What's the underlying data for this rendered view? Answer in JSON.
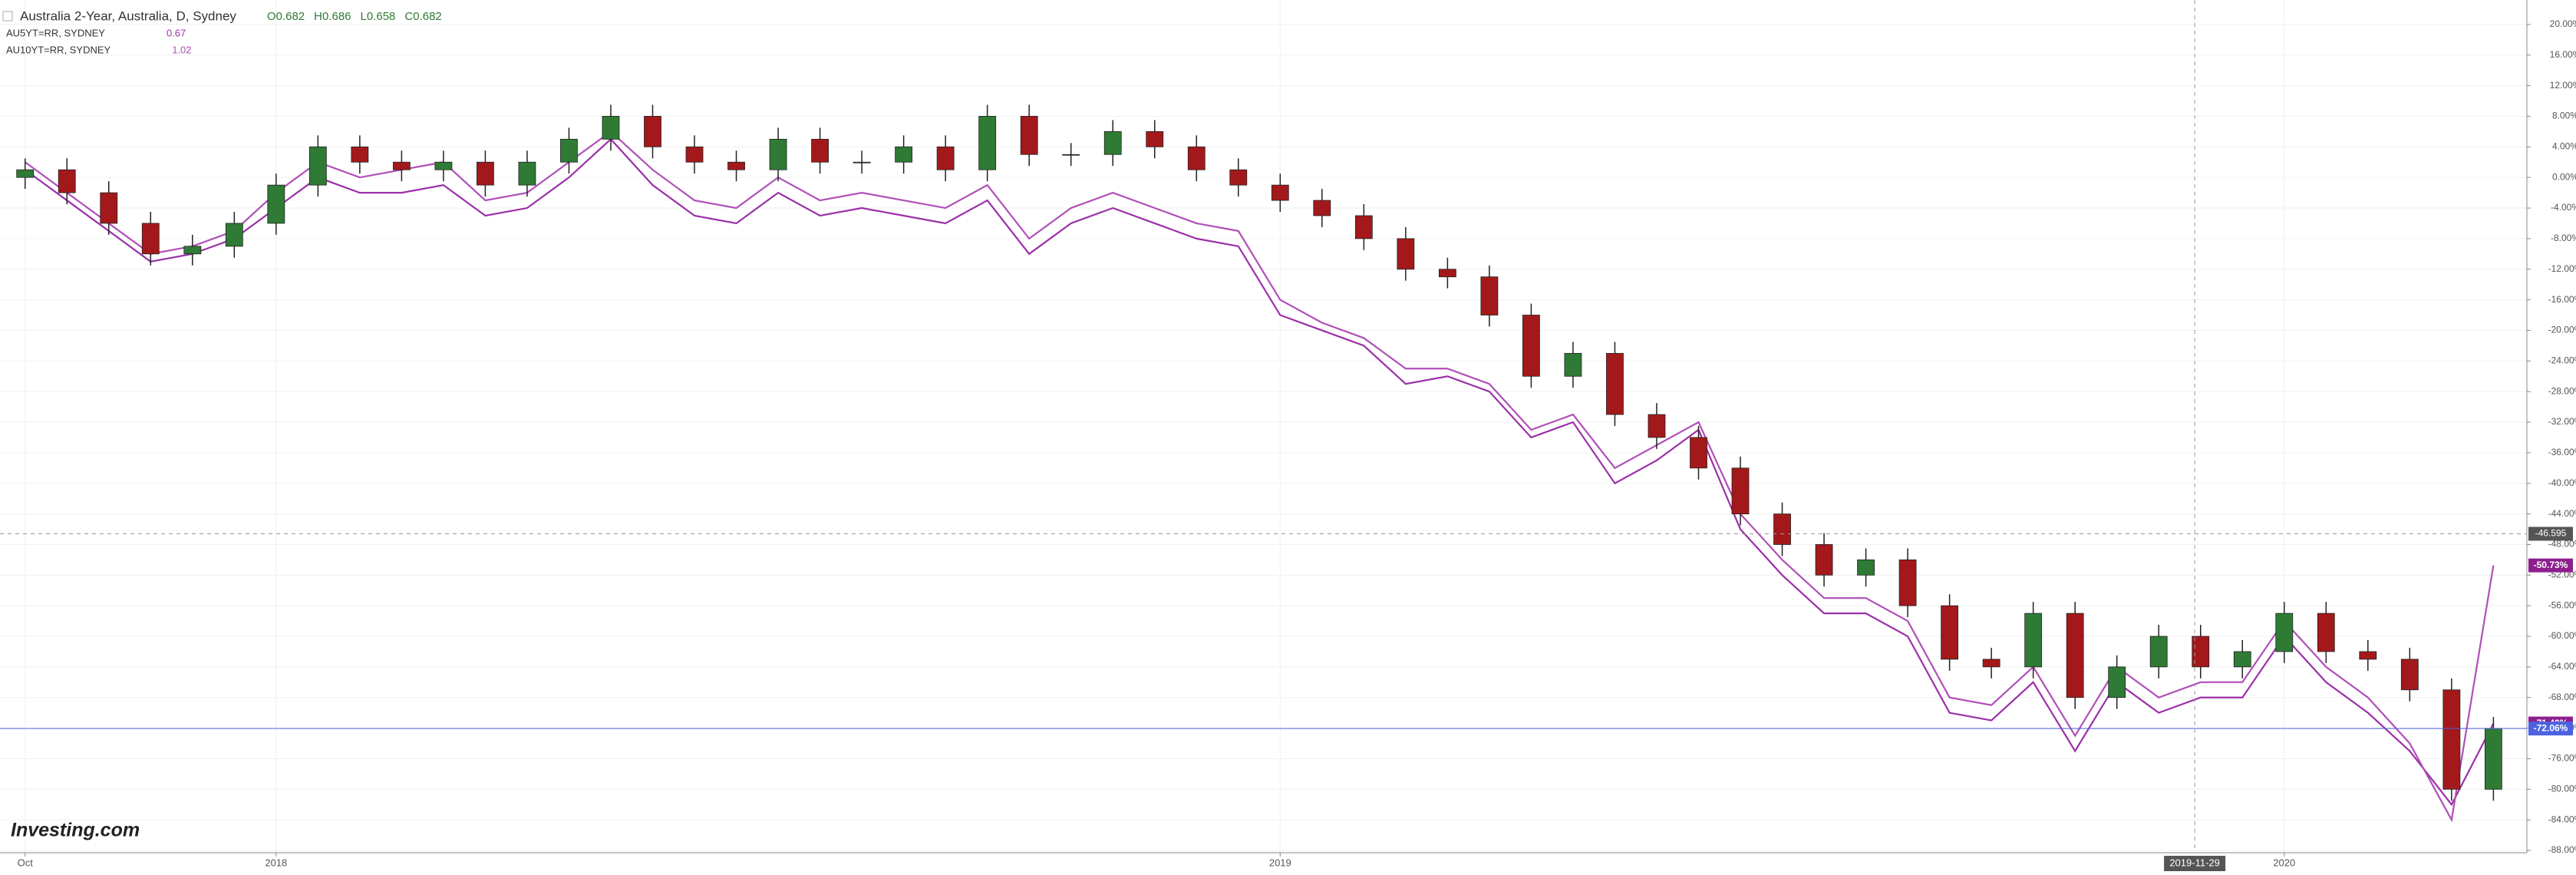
{
  "chart_data": {
    "type": "candlestick",
    "title": "Australia 2-Year, Australia, D, Sydney",
    "ohlc_labels": [
      "O0.682",
      "H0.686",
      "L0.658",
      "C0.682"
    ],
    "legend": [
      {
        "name": "AU5YT=RR, SYDNEY",
        "value_label": "0.67"
      },
      {
        "name": "AU10YT=RR, SYDNEY",
        "value_label": "1.02"
      }
    ],
    "logo": "Investing.com",
    "x": [
      0,
      0.5,
      1,
      1.5,
      2,
      2.5,
      3,
      3.5,
      4,
      4.5,
      5,
      5.5,
      6,
      6.5,
      7,
      7.5,
      8,
      8.5,
      9,
      9.5,
      10,
      10.5,
      11,
      11.5,
      12,
      12.5,
      13,
      13.5,
      14,
      14.5,
      15,
      15.5,
      16,
      16.5,
      17,
      17.5,
      18,
      18.5,
      19,
      19.5,
      20,
      20.5,
      21,
      21.5,
      22,
      22.5,
      23,
      23.5,
      24,
      24.5,
      25,
      25.5,
      26,
      26.5,
      27,
      27.5,
      28,
      28.5,
      29,
      29.5
    ],
    "candles": {
      "up_color": "#2f7a34",
      "down_color": "#a3191b",
      "open": [
        0,
        1,
        -2,
        -6,
        -10,
        -9,
        -6,
        -1,
        4,
        2,
        1,
        2,
        -1,
        2,
        5,
        8,
        4,
        2,
        1,
        5,
        2,
        2,
        4,
        1,
        8,
        3,
        3,
        6,
        4,
        1,
        -1,
        -3,
        -5,
        -8,
        -12,
        -13,
        -18,
        -26,
        -23,
        -31,
        -34,
        -38,
        -44,
        -48,
        -52,
        -50,
        -56,
        -63,
        -64,
        -57,
        -68,
        -64,
        -60,
        -64,
        -62,
        -57,
        -62,
        -63,
        -67,
        -80
      ],
      "high": [
        2.5,
        2.5,
        -0.5,
        -4.5,
        -7.5,
        -4.5,
        0.5,
        5.5,
        5.5,
        3.5,
        3.5,
        3.5,
        3.5,
        6.5,
        9.5,
        9.5,
        5.5,
        3.5,
        6.5,
        6.5,
        3.5,
        5.5,
        5.5,
        9.5,
        9.5,
        4.5,
        7.5,
        7.5,
        5.5,
        2.5,
        0.5,
        -1.5,
        -3.5,
        -6.5,
        -10.5,
        -11.5,
        -16.5,
        -21.5,
        -21.5,
        -29.5,
        -32.5,
        -36.5,
        -42.5,
        -46.5,
        -48.5,
        -48.5,
        -54.5,
        -61.5,
        -55.5,
        -55.5,
        -62.5,
        -58.5,
        -58.5,
        -60.5,
        -55.5,
        -55.5,
        -60.5,
        -61.5,
        -65.5,
        -70.56
      ],
      "low": [
        -1.5,
        -3.5,
        -7.5,
        -11.5,
        -11.5,
        -10.5,
        -7.5,
        -2.5,
        0.5,
        -0.5,
        -0.5,
        -2.5,
        -2.5,
        0.5,
        3.5,
        2.5,
        0.5,
        -0.5,
        -0.5,
        0.5,
        0.5,
        0.5,
        -0.5,
        -0.5,
        1.5,
        1.5,
        1.5,
        2.5,
        -0.5,
        -2.5,
        -4.5,
        -6.5,
        -9.5,
        -13.5,
        -14.5,
        -19.5,
        -27.5,
        -27.5,
        -32.5,
        -35.5,
        -39.5,
        -45.5,
        -49.5,
        -53.5,
        -53.5,
        -57.5,
        -64.5,
        -65.5,
        -65.5,
        -69.5,
        -69.5,
        -65.5,
        -65.5,
        -65.5,
        -63.5,
        -63.5,
        -64.5,
        -68.5,
        -81.5,
        -81.5
      ],
      "close": [
        1,
        -2,
        -6,
        -10,
        -9,
        -6,
        -1,
        4,
        2,
        1,
        2,
        -1,
        2,
        5,
        8,
        4,
        2,
        1,
        5,
        2,
        2,
        4,
        1,
        8,
        3,
        3,
        6,
        4,
        1,
        -1,
        -3,
        -5,
        -8,
        -12,
        -13,
        -18,
        -26,
        -23,
        -31,
        -34,
        -38,
        -44,
        -48,
        -52,
        -50,
        -56,
        -63,
        -64,
        -57,
        -68,
        -64,
        -60,
        -64,
        -62,
        -57,
        -62,
        -63,
        -67,
        -80,
        -72.06
      ]
    },
    "series": [
      {
        "name": "AU5YT=RR, SYDNEY",
        "color": "#9b30a8",
        "values": [
          1,
          -3,
          -7,
          -11,
          -10,
          -8,
          -4,
          0,
          -2,
          -2,
          -1,
          -5,
          -4,
          0,
          5,
          -1,
          -5,
          -6,
          -2,
          -5,
          -4,
          -5,
          -6,
          -3,
          -10,
          -6,
          -4,
          -6,
          -8,
          -9,
          -18,
          -20,
          -22,
          -27,
          -26,
          -28,
          -34,
          -32,
          -40,
          -37,
          -33,
          -46,
          -52,
          -57,
          -57,
          -60,
          -70,
          -71,
          -66,
          -75,
          -66,
          -70,
          -68,
          -68,
          -60,
          -66,
          -70,
          -75,
          -82,
          -71.4
        ]
      },
      {
        "name": "AU10YT=RR, SYDNEY",
        "color": "#b04fb8",
        "values": [
          2,
          -2,
          -6,
          -10,
          -9,
          -7,
          -2,
          2,
          0,
          1,
          2,
          -3,
          -2,
          2,
          6,
          1,
          -3,
          -4,
          0,
          -3,
          -2,
          -3,
          -4,
          -1,
          -8,
          -4,
          -2,
          -4,
          -6,
          -7,
          -16,
          -19,
          -21,
          -25,
          -25,
          -27,
          -33,
          -31,
          -38,
          -35,
          -32,
          -44,
          -50,
          -55,
          -55,
          -58,
          -68,
          -69,
          -64,
          -73,
          -64,
          -68,
          -66,
          -66,
          -58,
          -64,
          -68,
          -74,
          -84,
          -50.73
        ]
      }
    ],
    "xlim": [
      -0.3,
      29.9
    ],
    "xticks": [
      {
        "value": 0,
        "label": "Oct"
      },
      {
        "value": 3,
        "label": "2018"
      },
      {
        "value": 15,
        "label": "2019"
      },
      {
        "value": 27,
        "label": "2020"
      }
    ],
    "ylim": [
      -88.3,
      23.2
    ],
    "yticks": [
      {
        "value": 20,
        "label": "20.00%"
      },
      {
        "value": 16,
        "label": "16.00%"
      },
      {
        "value": 12,
        "label": "12.00%"
      },
      {
        "value": 8,
        "label": "8.00%"
      },
      {
        "value": 4,
        "label": "4.00%"
      },
      {
        "value": 0,
        "label": "0.00%"
      },
      {
        "value": -4,
        "label": "-4.00%"
      },
      {
        "value": -8,
        "label": "-8.00%"
      },
      {
        "value": -12,
        "label": "-12.00%"
      },
      {
        "value": -16,
        "label": "-16.00%"
      },
      {
        "value": -20,
        "label": "-20.00%"
      },
      {
        "value": -24,
        "label": "-24.00%"
      },
      {
        "value": -28,
        "label": "-28.00%"
      },
      {
        "value": -32,
        "label": "-32.00%"
      },
      {
        "value": -36,
        "label": "-36.00%"
      },
      {
        "value": -40,
        "label": "-40.00%"
      },
      {
        "value": -44,
        "label": "-44.00%"
      },
      {
        "value": -48,
        "label": "-48.00%"
      },
      {
        "value": -52,
        "label": "-52.00%"
      },
      {
        "value": -56,
        "label": "-56.00%"
      },
      {
        "value": -60,
        "label": "-60.00%"
      },
      {
        "value": -64,
        "label": "-64.00%"
      },
      {
        "value": -68,
        "label": "-68.00%"
      },
      {
        "value": -72,
        "label": "-72.00%"
      },
      {
        "value": -76,
        "label": "-76.00%"
      },
      {
        "value": -80,
        "label": "-80.00%"
      },
      {
        "value": -84,
        "label": "-84.00%"
      },
      {
        "value": -88,
        "label": "-88.00%"
      }
    ],
    "grid": true,
    "crosshair": {
      "x": {
        "value": 25.93,
        "label": "2019-11-29"
      },
      "y": {
        "value": -46.595,
        "label": "-46.595"
      }
    },
    "price_labels": [
      {
        "value": -50.73,
        "label": "-50.73%",
        "color": "#8e1f8e"
      },
      {
        "value": -71.4,
        "label": "-71.40%",
        "color": "#8e1f8e"
      },
      {
        "value": -72.06,
        "label": "-72.06%",
        "color": "#4b63e0",
        "line": true
      }
    ]
  }
}
